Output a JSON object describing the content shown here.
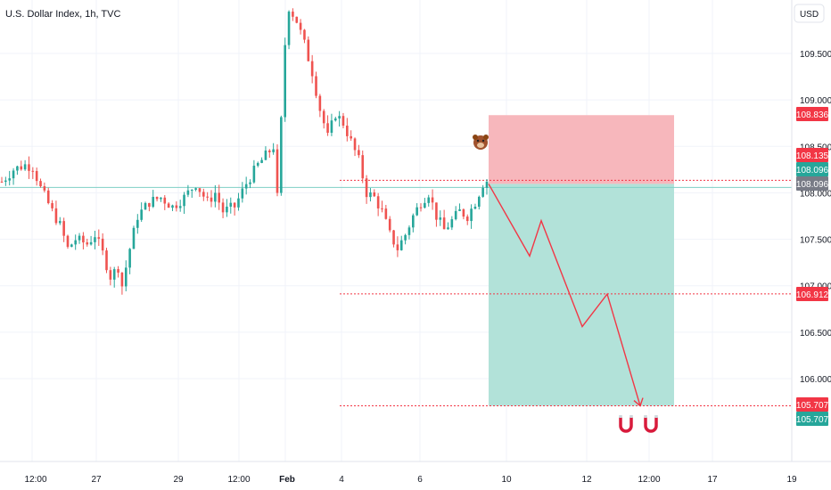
{
  "header": {
    "title": "U.S. Dollar Index, 1h, TVC",
    "currency_button": "USD"
  },
  "colors": {
    "up": "#26a69a",
    "down": "#ef5350",
    "stop_zone": "#f7b7bc",
    "target_zone": "#b2e2d9",
    "dotted_line": "#f23645",
    "arrow": "#f23645",
    "last_price_tag": "#787b86",
    "grid": "#f0f3fa"
  },
  "chart_data": {
    "type": "candlestick",
    "symbol": "U.S. Dollar Index",
    "interval": "1h",
    "source": "TVC",
    "ylim": [
      105.35,
      110.6
    ],
    "y_ticks": [
      106.0,
      106.5,
      107.0,
      107.5,
      108.0,
      108.5,
      109.0,
      109.5
    ],
    "y_tick_labels": [
      "106.000",
      "106.500",
      "107.000",
      "107.500",
      "108.000",
      "108.500",
      "109.000",
      "109.500"
    ],
    "x_tick_labels": [
      "12:00",
      "27",
      "29",
      "12:00",
      "Feb",
      "4",
      "6",
      "10",
      "12",
      "12:00",
      "17",
      "19"
    ],
    "price_path": [
      [
        0,
        108.12
      ],
      [
        3,
        108.25
      ],
      [
        6,
        108.3
      ],
      [
        8,
        108.28
      ],
      [
        10,
        108.05
      ],
      [
        13,
        107.8
      ],
      [
        15,
        107.65
      ],
      [
        17,
        107.4
      ],
      [
        19,
        107.5
      ],
      [
        22,
        107.45
      ],
      [
        24,
        107.55
      ],
      [
        26,
        107.35
      ],
      [
        28,
        107.1
      ],
      [
        30,
        107.2
      ],
      [
        31,
        107.0
      ],
      [
        33,
        107.4
      ],
      [
        35,
        107.75
      ],
      [
        38,
        107.9
      ],
      [
        41,
        107.95
      ],
      [
        44,
        107.85
      ],
      [
        47,
        107.95
      ],
      [
        50,
        108.1
      ],
      [
        53,
        107.9
      ],
      [
        55,
        108.0
      ],
      [
        57,
        107.8
      ],
      [
        60,
        107.85
      ],
      [
        63,
        108.1
      ],
      [
        66,
        108.3
      ],
      [
        68,
        108.4
      ],
      [
        70,
        108.5
      ],
      [
        71,
        107.95
      ],
      [
        73,
        109.6
      ],
      [
        74,
        110.0
      ],
      [
        76,
        109.85
      ],
      [
        78,
        109.6
      ],
      [
        80,
        109.3
      ],
      [
        82,
        108.9
      ],
      [
        84,
        108.6
      ],
      [
        86,
        108.85
      ],
      [
        88,
        108.75
      ],
      [
        90,
        108.55
      ],
      [
        92,
        108.35
      ],
      [
        94,
        108.0
      ],
      [
        96,
        107.95
      ],
      [
        98,
        107.8
      ],
      [
        100,
        107.55
      ],
      [
        102,
        107.4
      ],
      [
        104,
        107.55
      ],
      [
        106,
        107.75
      ],
      [
        108,
        107.9
      ],
      [
        110,
        108.0
      ],
      [
        112,
        107.75
      ],
      [
        114,
        107.6
      ],
      [
        116,
        107.7
      ],
      [
        118,
        107.8
      ],
      [
        120,
        107.75
      ],
      [
        122,
        107.9
      ],
      [
        124,
        108.1
      ],
      [
        125,
        108.13
      ]
    ],
    "position": {
      "direction": "short",
      "entry": 108.096,
      "stop": 108.836,
      "target": 105.707
    },
    "projected_path": [
      108.096,
      107.32,
      107.7,
      106.56,
      106.91,
      105.707
    ],
    "horizontal_levels": [
      108.135,
      108.096,
      106.912,
      105.707
    ],
    "price_tags": [
      {
        "label": "108.836",
        "kind": "stop"
      },
      {
        "label": "108.135",
        "kind": "level"
      },
      {
        "label": "108.096",
        "kind": "entry"
      },
      {
        "label": "108.096",
        "kind": "last"
      },
      {
        "label": "106.912",
        "kind": "level"
      },
      {
        "label": "105.707",
        "kind": "level"
      },
      {
        "label": "105.707",
        "kind": "target"
      }
    ],
    "annotations": [
      {
        "icon": "bear-emoji-icon"
      },
      {
        "icon": "magnet-icon"
      },
      {
        "icon": "magnet-icon"
      }
    ],
    "grid": true
  }
}
